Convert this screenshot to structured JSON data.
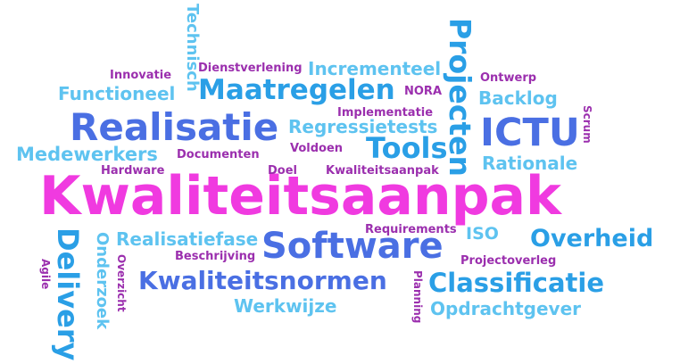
{
  "palette": {
    "purple": "#9b2fae",
    "light_blue": "#5ec3f0",
    "blue": "#4a6fe3",
    "azure": "#2a9fe6",
    "magenta": "#f03ae0"
  },
  "words": {
    "kwaliteitsaanpak": "Kwaliteitsaanpak",
    "realisatie": "Realisatie",
    "software": "Software",
    "ictu": "ICTU",
    "maatregelen": "Maatregelen",
    "projecten": "Projecten",
    "tools": "Tools",
    "kwaliteitsnormen": "Kwaliteitsnormen",
    "classificatie": "Classificatie",
    "overheid": "Overheid",
    "delivery": "Delivery",
    "medewerkers": "Medewerkers",
    "functioneel": "Functioneel",
    "incrementeel": "Incrementeel",
    "regressietests": "Regressietests",
    "rationale": "Rationale",
    "backlog": "Backlog",
    "opdrachtgever": "Opdrachtgever",
    "werkwijze": "Werkwijze",
    "realisatiefase": "Realisatiefase",
    "onderzoek": "Onderzoek",
    "technisch": "Technisch",
    "iso": "ISO",
    "innovatie": "Innovatie",
    "dienstverlening": "Dienstverlening",
    "nora": "NORA",
    "ontwerp": "Ontwerp",
    "implementatie": "Implementatie",
    "scrum": "Scrum",
    "voldoen": "Voldoen",
    "hardware": "Hardware",
    "documenten": "Documenten",
    "doel": "Doel",
    "kwaliteitsaanpak_small": "Kwaliteitsaanpak",
    "requirements": "Requirements",
    "beschrijving": "Beschrijving",
    "projectoverleg": "Projectoverleg",
    "planning": "Planning",
    "overzicht": "Overzicht",
    "agile": "Agile"
  }
}
